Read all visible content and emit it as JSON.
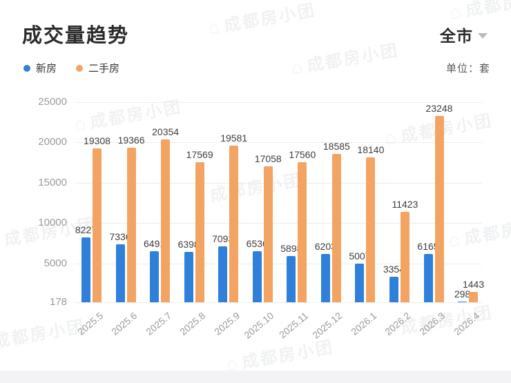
{
  "header": {
    "title": "成交量趋势",
    "region_selector": "全市"
  },
  "legend": {
    "unit_label": "单位：套",
    "items": [
      {
        "id": "new-home",
        "label": "新房",
        "color": "#2E80DA"
      },
      {
        "id": "resale-home",
        "label": "二手房",
        "color": "#F4A462"
      }
    ]
  },
  "watermark": {
    "logo_icon": "⌂",
    "text": "成都房小团"
  },
  "chart_data": {
    "type": "bar",
    "title": "成交量趋势",
    "unit": "套",
    "categories": [
      "2025.5",
      "2025.6",
      "2025.7",
      "2025.8",
      "2025.9",
      "2025.10",
      "2025.11",
      "2025.12",
      "2026.1",
      "2026.2",
      "2026.3",
      "2026.4"
    ],
    "series": [
      {
        "id": "new-home",
        "name": "新房",
        "color": "#2E80DA",
        "values": [
          8227,
          7336,
          6491,
          6398,
          7093,
          6536,
          5898,
          6203,
          5007,
          3354,
          6165,
          298
        ]
      },
      {
        "id": "resale-home",
        "name": "二手房",
        "color": "#F4A462",
        "values": [
          19308,
          19366,
          20354,
          17569,
          19581,
          17058,
          17560,
          18585,
          18140,
          11423,
          23248,
          1443
        ]
      }
    ],
    "ylim": [
      178,
      25000
    ],
    "y_ticks": [
      178,
      5000,
      10000,
      15000,
      20000,
      25000
    ],
    "grid": true,
    "legend_position": "top-left",
    "value_labels": true
  }
}
